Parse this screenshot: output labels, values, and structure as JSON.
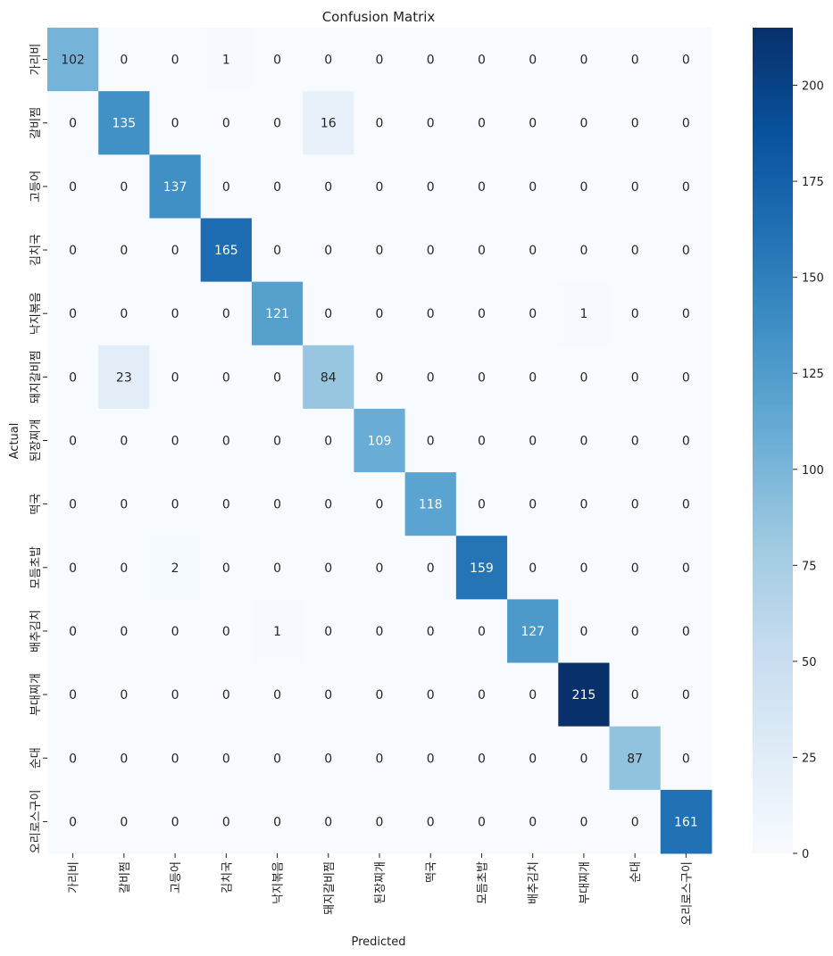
{
  "chart_data": {
    "type": "heatmap",
    "title": "Confusion Matrix",
    "xlabel": "Predicted",
    "ylabel": "Actual",
    "x_categories": [
      "가리비",
      "갈비찜",
      "고등어",
      "김치국",
      "낙지볶음",
      "돼지갈비찜",
      "된장찌개",
      "떡국",
      "모듬초밥",
      "배추김치",
      "부대찌개",
      "순대",
      "오리로스구이"
    ],
    "y_categories": [
      "가리비",
      "갈비찜",
      "고등어",
      "김치국",
      "낙지볶음",
      "돼지갈비찜",
      "된장찌개",
      "떡국",
      "모듬초밥",
      "배추김치",
      "부대찌개",
      "순대",
      "오리로스구이"
    ],
    "values": [
      [
        102,
        0,
        0,
        1,
        0,
        0,
        0,
        0,
        0,
        0,
        0,
        0,
        0
      ],
      [
        0,
        135,
        0,
        0,
        0,
        16,
        0,
        0,
        0,
        0,
        0,
        0,
        0
      ],
      [
        0,
        0,
        137,
        0,
        0,
        0,
        0,
        0,
        0,
        0,
        0,
        0,
        0
      ],
      [
        0,
        0,
        0,
        165,
        0,
        0,
        0,
        0,
        0,
        0,
        0,
        0,
        0
      ],
      [
        0,
        0,
        0,
        0,
        121,
        0,
        0,
        0,
        0,
        0,
        1,
        0,
        0
      ],
      [
        0,
        23,
        0,
        0,
        0,
        84,
        0,
        0,
        0,
        0,
        0,
        0,
        0
      ],
      [
        0,
        0,
        0,
        0,
        0,
        0,
        109,
        0,
        0,
        0,
        0,
        0,
        0
      ],
      [
        0,
        0,
        0,
        0,
        0,
        0,
        0,
        118,
        0,
        0,
        0,
        0,
        0
      ],
      [
        0,
        0,
        2,
        0,
        0,
        0,
        0,
        0,
        159,
        0,
        0,
        0,
        0
      ],
      [
        0,
        0,
        0,
        0,
        1,
        0,
        0,
        0,
        0,
        127,
        0,
        0,
        0
      ],
      [
        0,
        0,
        0,
        0,
        0,
        0,
        0,
        0,
        0,
        0,
        215,
        0,
        0
      ],
      [
        0,
        0,
        0,
        0,
        0,
        0,
        0,
        0,
        0,
        0,
        0,
        87,
        0
      ],
      [
        0,
        0,
        0,
        0,
        0,
        0,
        0,
        0,
        0,
        0,
        0,
        0,
        161
      ]
    ],
    "colormap": "Blues",
    "colorbar_range": [
      0,
      215
    ],
    "colorbar_ticks": [
      0,
      25,
      50,
      75,
      100,
      125,
      150,
      175,
      200
    ],
    "colorbar_tick_labels": [
      "0",
      "25",
      "50",
      "75",
      "100",
      "125",
      "150",
      "175",
      "200"
    ]
  }
}
